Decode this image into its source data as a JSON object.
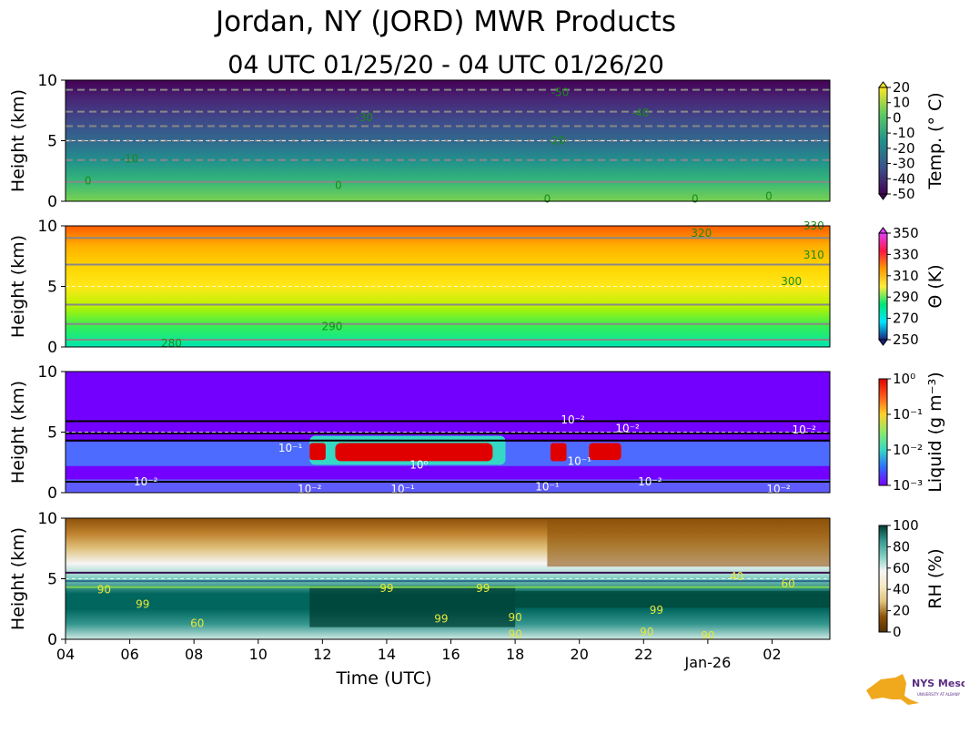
{
  "header": {
    "title": "Jordan, NY (JORD) MWR Products",
    "subtitle": "04 UTC 01/25/20 - 04 UTC 01/26/20"
  },
  "logo": {
    "text": "NYS Mesonet",
    "subtext": "UNIVERSITY AT ALBANY",
    "icon": "ny-state-map-icon"
  },
  "chart_data": {
    "type": "heatmap",
    "shared_x": {
      "label": "Time (UTC)",
      "ticks": [
        "04",
        "06",
        "08",
        "10",
        "12",
        "14",
        "16",
        "18",
        "20",
        "22",
        "Jan-26",
        "02"
      ],
      "tick_hours": [
        4,
        6,
        8,
        10,
        12,
        14,
        16,
        18,
        20,
        22,
        24,
        26
      ],
      "range": [
        4,
        27.8
      ]
    },
    "panels": [
      {
        "id": "temperature",
        "ylabel": "Height (km)",
        "yticks": [
          0,
          5,
          10
        ],
        "ylim": [
          0,
          10
        ],
        "colorbar_label": "Temp. (° C)",
        "colorbar_ticks": [
          "20",
          "10",
          "0",
          "-10",
          "-20",
          "-30",
          "-40",
          "-50"
        ],
        "colorbar_colors": [
          "#440154",
          "#3b528b",
          "#21918c",
          "#5ec962",
          "#fde725"
        ],
        "contours": [
          {
            "label": "-50",
            "level_km": 9.2,
            "dashed": true
          },
          {
            "label": "-40",
            "level_km": 7.4,
            "dashed": true
          },
          {
            "label": "-30",
            "level_km": 6.2,
            "dashed": true
          },
          {
            "label": "-20",
            "level_km": 5.0,
            "dashed": true
          },
          {
            "label": "-10",
            "level_km": 3.4,
            "dashed": true
          },
          {
            "label": "0",
            "level_km": 1.6,
            "dashed": false
          }
        ],
        "labels": [
          {
            "text": "-50",
            "t": 19.4,
            "h": 9.0
          },
          {
            "text": "-40",
            "t": 21.9,
            "h": 7.3
          },
          {
            "text": "-30",
            "t": 13.3,
            "h": 6.9
          },
          {
            "text": "-20",
            "t": 19.3,
            "h": 5.0
          },
          {
            "text": "-10",
            "t": 6.0,
            "h": 3.5
          },
          {
            "text": "0",
            "t": 4.7,
            "h": 1.7
          },
          {
            "text": "0",
            "t": 12.5,
            "h": 1.3
          },
          {
            "text": "0",
            "t": 19.0,
            "h": 0.2
          },
          {
            "text": "0",
            "t": 23.6,
            "h": 0.2
          },
          {
            "text": "0",
            "t": 25.9,
            "h": 0.4
          }
        ]
      },
      {
        "id": "theta",
        "ylabel": "Height (km)",
        "yticks": [
          0,
          5,
          10
        ],
        "ylim": [
          0,
          10
        ],
        "colorbar_label": "Θ (K)",
        "colorbar_ticks": [
          "350",
          "330",
          "310",
          "290",
          "270",
          "250"
        ],
        "colorbar_colors": [
          "#1a237e",
          "#00e5ff",
          "#00e676",
          "#ffeb3b",
          "#ff9800",
          "#ff1744",
          "#e040fb"
        ],
        "contours": [
          {
            "label": "280",
            "level_km": 0.6
          },
          {
            "label": "290",
            "level_km": 1.9
          },
          {
            "label": "300",
            "level_km": 3.5
          },
          {
            "label": "310",
            "level_km": 6.8
          },
          {
            "label": "320",
            "level_km": 9.0
          }
        ],
        "labels": [
          {
            "text": "280",
            "t": 7.3,
            "h": 0.3
          },
          {
            "text": "290",
            "t": 12.3,
            "h": 1.7
          },
          {
            "text": "300",
            "t": 26.6,
            "h": 5.4
          },
          {
            "text": "310",
            "t": 27.3,
            "h": 7.6
          },
          {
            "text": "320",
            "t": 23.8,
            "h": 9.4
          },
          {
            "text": "330",
            "t": 27.3,
            "h": 10.0
          }
        ]
      },
      {
        "id": "liquid",
        "ylabel": "Height (km)",
        "yticks": [
          0,
          5,
          10
        ],
        "ylim": [
          0,
          10
        ],
        "colorbar_label": "Liquid (g m⁻³)",
        "colorbar_ticks": [
          "10⁰",
          "10⁻¹",
          "10⁻²",
          "10⁻³"
        ],
        "colorbar_colors": [
          "#7b00ff",
          "#2f6bff",
          "#34d8c4",
          "#8ee86a",
          "#ffd12a",
          "#ff5a1a",
          "#e00000"
        ],
        "labels": [
          {
            "text": "10⁻²",
            "t": 19.8,
            "h": 6.0
          },
          {
            "text": "10⁻²",
            "t": 21.5,
            "h": 5.3
          },
          {
            "text": "10⁻²",
            "t": 27.0,
            "h": 5.2
          },
          {
            "text": "10⁻¹",
            "t": 11.0,
            "h": 3.7
          },
          {
            "text": "10⁰",
            "t": 15.0,
            "h": 2.3
          },
          {
            "text": "10⁻¹",
            "t": 20.0,
            "h": 2.6
          },
          {
            "text": "10⁻²",
            "t": 6.5,
            "h": 0.9
          },
          {
            "text": "10⁻²",
            "t": 11.6,
            "h": 0.3
          },
          {
            "text": "10⁻¹",
            "t": 14.5,
            "h": 0.3
          },
          {
            "text": "10⁻¹",
            "t": 19.0,
            "h": 0.5
          },
          {
            "text": "10⁻²",
            "t": 22.2,
            "h": 0.9
          },
          {
            "text": "10⁻²",
            "t": 26.2,
            "h": 0.3
          }
        ]
      },
      {
        "id": "rh",
        "ylabel": "Height (km)",
        "yticks": [
          0,
          5,
          10
        ],
        "ylim": [
          0,
          10
        ],
        "colorbar_label": "RH (%)",
        "colorbar_ticks": [
          "100",
          "80",
          "60",
          "40",
          "20",
          "0"
        ],
        "colorbar_colors": [
          "#543005",
          "#8c510a",
          "#dfc27d",
          "#f6e8c3",
          "#f5f5f5",
          "#80cdc1",
          "#35978f",
          "#003c30"
        ],
        "labels": [
          {
            "text": "40",
            "t": 24.9,
            "h": 5.2
          },
          {
            "text": "60",
            "t": 26.5,
            "h": 4.6
          },
          {
            "text": "90",
            "t": 5.2,
            "h": 4.1
          },
          {
            "text": "99",
            "t": 6.4,
            "h": 2.9
          },
          {
            "text": "99",
            "t": 14.0,
            "h": 4.2
          },
          {
            "text": "99",
            "t": 17.0,
            "h": 4.2
          },
          {
            "text": "99",
            "t": 15.7,
            "h": 1.7
          },
          {
            "text": "99",
            "t": 22.4,
            "h": 2.4
          },
          {
            "text": "90",
            "t": 18.0,
            "h": 1.8
          },
          {
            "text": "90",
            "t": 18.0,
            "h": 0.4
          },
          {
            "text": "90",
            "t": 22.1,
            "h": 0.6
          },
          {
            "text": "90",
            "t": 24.0,
            "h": 0.3
          },
          {
            "text": "60",
            "t": 8.1,
            "h": 1.3
          }
        ]
      }
    ]
  }
}
